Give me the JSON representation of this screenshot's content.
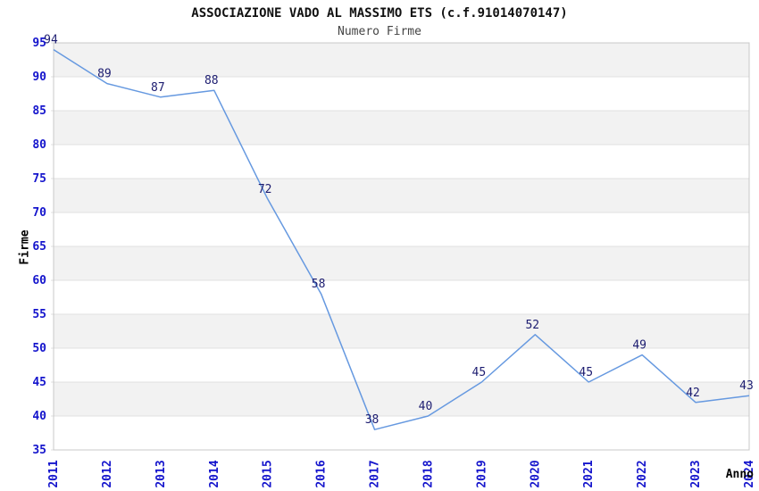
{
  "chart_data": {
    "type": "line",
    "title": "ASSOCIAZIONE VADO AL MASSIMO ETS (c.f.91014070147)",
    "subtitle": "Numero Firme",
    "xlabel": "Anno",
    "ylabel": "Firme",
    "x": [
      "2011",
      "2012",
      "2013",
      "2014",
      "2015",
      "2016",
      "2017",
      "2018",
      "2019",
      "2020",
      "2021",
      "2022",
      "2023",
      "2024"
    ],
    "series": [
      {
        "name": "Numero Firme",
        "values": [
          94,
          89,
          87,
          88,
          72,
          58,
          38,
          40,
          45,
          52,
          45,
          49,
          42,
          43
        ]
      }
    ],
    "yticks": [
      35,
      40,
      45,
      50,
      55,
      60,
      65,
      70,
      75,
      80,
      85,
      90,
      95
    ],
    "ylim": [
      35,
      95
    ],
    "ytick_step": 5,
    "grid": true,
    "point_labels": true,
    "legend_position": "none",
    "colors": {
      "line": "#6699e0",
      "tick_label": "#1414cc",
      "point_label": "#1c1c70",
      "band": "#f2f2f2",
      "grid": "#e0e0e0",
      "border": "#c8c8c8",
      "title": "#111111",
      "subtitle": "#444444",
      "axis_title": "#000000"
    }
  }
}
